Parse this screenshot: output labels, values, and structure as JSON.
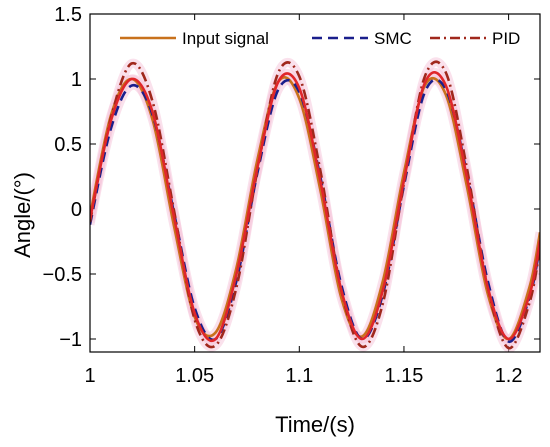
{
  "chart_data": {
    "type": "line",
    "xlabel": "Time/(s)",
    "ylabel": "Angle/(°)",
    "xlim": [
      1.0,
      1.215
    ],
    "ylim": [
      -1.1,
      1.5
    ],
    "xticks": [
      1,
      1.05,
      1.1,
      1.15,
      1.2
    ],
    "xtick_labels": [
      "1",
      "1.05",
      "1.1",
      "1.15",
      "1.2"
    ],
    "yticks": [
      -1,
      -0.5,
      0,
      0.5,
      1,
      1.5
    ],
    "ytick_labels": [
      "−1",
      "−0.5",
      "0",
      "0.5",
      "1",
      "1.5"
    ],
    "grid": false,
    "legend_position": "top",
    "series": [
      {
        "name": "Input signal",
        "style": "solid",
        "color": "#c8711c",
        "x": [
          1.0,
          1.01,
          1.02,
          1.03,
          1.04,
          1.05,
          1.06,
          1.07,
          1.08,
          1.09,
          1.1,
          1.11,
          1.12,
          1.13,
          1.14,
          1.15,
          1.16,
          1.17,
          1.18,
          1.19,
          1.2,
          1.21,
          1.215
        ],
        "y": [
          -0.05,
          0.72,
          1.0,
          0.68,
          -0.12,
          -0.83,
          -0.95,
          -0.45,
          0.38,
          0.98,
          0.85,
          0.15,
          -0.68,
          -0.98,
          -0.55,
          0.28,
          0.95,
          0.88,
          0.18,
          -0.65,
          -1.0,
          -0.6,
          -0.18
        ]
      },
      {
        "name": "SMC",
        "style": "dashed",
        "color": "#1a1f8c",
        "x": [
          1.0,
          1.01,
          1.02,
          1.03,
          1.04,
          1.05,
          1.06,
          1.07,
          1.08,
          1.09,
          1.1,
          1.11,
          1.12,
          1.13,
          1.14,
          1.15,
          1.16,
          1.17,
          1.18,
          1.19,
          1.2,
          1.21,
          1.215
        ],
        "y": [
          -0.12,
          0.62,
          0.95,
          0.72,
          -0.02,
          -0.76,
          -1.0,
          -0.55,
          0.28,
          0.92,
          0.9,
          0.25,
          -0.58,
          -1.0,
          -0.65,
          0.18,
          0.9,
          0.92,
          0.28,
          -0.55,
          -1.02,
          -0.68,
          -0.28
        ]
      },
      {
        "name": "PID",
        "style": "dashdot",
        "color": "#a0281c",
        "x": [
          1.0,
          1.01,
          1.02,
          1.03,
          1.04,
          1.05,
          1.06,
          1.07,
          1.08,
          1.09,
          1.1,
          1.11,
          1.12,
          1.13,
          1.14,
          1.15,
          1.16,
          1.17,
          1.18,
          1.19,
          1.2,
          1.21,
          1.215
        ],
        "y": [
          -0.1,
          0.7,
          1.12,
          0.82,
          0.0,
          -0.85,
          -1.05,
          -0.6,
          0.3,
          1.05,
          1.02,
          0.3,
          -0.62,
          -1.06,
          -0.72,
          0.2,
          1.02,
          1.05,
          0.32,
          -0.6,
          -1.07,
          -0.72,
          -0.3
        ]
      },
      {
        "name": "",
        "style": "solid",
        "color": "#e0262a",
        "x": [
          1.0,
          1.01,
          1.02,
          1.03,
          1.04,
          1.05,
          1.06,
          1.07,
          1.08,
          1.09,
          1.1,
          1.11,
          1.12,
          1.13,
          1.14,
          1.15,
          1.16,
          1.17,
          1.18,
          1.19,
          1.2,
          1.21,
          1.215
        ],
        "y": [
          -0.08,
          0.68,
          1.0,
          0.74,
          -0.05,
          -0.8,
          -1.0,
          -0.5,
          0.32,
          0.98,
          0.93,
          0.22,
          -0.62,
          -1.0,
          -0.62,
          0.22,
          0.97,
          0.95,
          0.25,
          -0.6,
          -1.0,
          -0.66,
          -0.24
        ]
      }
    ]
  }
}
